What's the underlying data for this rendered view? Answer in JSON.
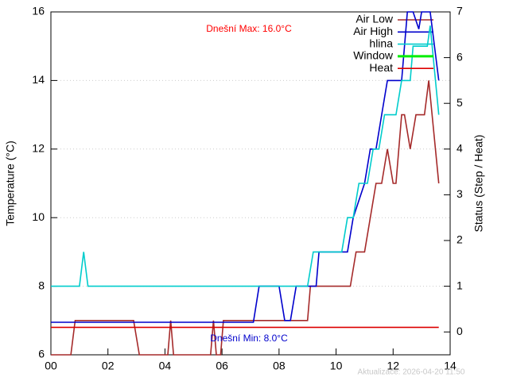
{
  "chart_data": {
    "type": "line",
    "ylabel": "Temperature (°C)",
    "y2label": "Status (Step / Heat)",
    "annotations": [
      "Dnešní Max: 16.0°C",
      "Dnešní Min: 8.0°C",
      "Aktualizace: 2026-04-20 11:50"
    ],
    "annotation_colors": [
      "#ff0000",
      "#0000cc",
      "#c8c8c8"
    ],
    "xlim": [
      0,
      14
    ],
    "xticks": [
      {
        "value": 0,
        "label": "00"
      },
      {
        "value": 2,
        "label": "02"
      },
      {
        "value": 4,
        "label": "04"
      },
      {
        "value": 6,
        "label": "06"
      },
      {
        "value": 8,
        "label": "08"
      },
      {
        "value": 10,
        "label": "10"
      },
      {
        "value": 12,
        "label": "12"
      },
      {
        "value": 14,
        "label": "14"
      }
    ],
    "ylim": [
      6,
      16
    ],
    "yticks": [
      6,
      8,
      10,
      12,
      14,
      16
    ],
    "y2lim": [
      -0.5,
      7
    ],
    "y2ticks": [
      0,
      1,
      2,
      3,
      4,
      5,
      6,
      7
    ],
    "grid": true,
    "series": [
      {
        "name": "Air Low",
        "color": "#a52a2a",
        "x": [
          0,
          0.7,
          0.85,
          2.9,
          3.1,
          4.1,
          4.2,
          4.3,
          5.6,
          5.7,
          5.8,
          5.95,
          6.05,
          9.0,
          9.1,
          10.5,
          10.7,
          11.0,
          11.2,
          11.4,
          11.6,
          11.8,
          12.0,
          12.1,
          12.3,
          12.4,
          12.6,
          12.8,
          13.1,
          13.25,
          13.6
        ],
        "values": [
          6,
          6,
          7,
          7,
          6,
          6,
          7,
          6,
          6,
          7,
          6,
          6,
          7,
          7,
          8,
          8,
          9,
          9,
          10,
          11,
          11,
          12,
          11,
          11,
          13,
          13,
          12,
          13,
          13,
          14,
          11
        ]
      },
      {
        "name": "Air High",
        "color": "#0000cc",
        "x": [
          0,
          7.1,
          7.3,
          8.0,
          8.2,
          8.4,
          8.6,
          9.0,
          9.3,
          9.4,
          10.4,
          10.6,
          11.0,
          11.2,
          11.4,
          11.6,
          11.8,
          12.3,
          12.4,
          12.5,
          12.7,
          12.9,
          13.0,
          13.3,
          13.6
        ],
        "values": [
          6.95,
          6.95,
          8,
          8,
          7,
          7,
          8,
          8,
          8,
          9,
          9,
          10,
          11,
          12,
          12,
          13,
          14,
          14,
          15,
          16,
          16,
          15.5,
          16,
          16,
          14
        ]
      },
      {
        "name": "hlina",
        "color": "#00cccc",
        "x": [
          0,
          1.0,
          1.15,
          1.3,
          9.0,
          9.2,
          10.2,
          10.4,
          10.6,
          10.8,
          11.1,
          11.3,
          11.5,
          11.7,
          12.1,
          12.3,
          12.6,
          12.7,
          13.2,
          13.3,
          13.6
        ],
        "values": [
          8,
          8,
          9,
          8,
          8,
          9,
          9,
          10,
          10,
          11,
          11,
          12,
          12,
          13,
          13,
          14,
          14,
          15,
          15,
          15.6,
          13
        ]
      },
      {
        "name": "Window",
        "color": "#00ee00",
        "axis": "y2",
        "x": [],
        "values": []
      },
      {
        "name": "Heat",
        "color": "#dd0000",
        "axis": "y2",
        "x": [
          0,
          13.6
        ],
        "values": [
          0.1,
          0.1
        ]
      }
    ]
  }
}
